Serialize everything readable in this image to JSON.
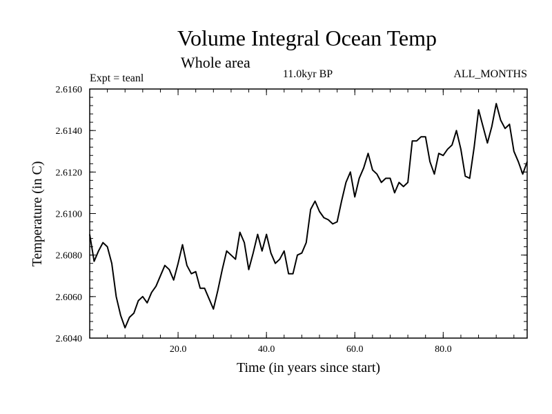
{
  "chart_data": {
    "type": "line",
    "title": "Volume Integral Ocean Temp",
    "subtitle": "Whole area",
    "annotations": {
      "experiment": "Expt = teanl",
      "period": "11.0kyr BP",
      "months": "ALL_MONTHS"
    },
    "xlabel": "Time (in years since start)",
    "ylabel": "Temperature (in C)",
    "xlim": [
      0,
      99
    ],
    "ylim": [
      2.604,
      2.616
    ],
    "xticks": [
      20,
      40,
      60,
      80
    ],
    "xtick_labels": [
      "20.0",
      "40.0",
      "60.0",
      "80.0"
    ],
    "yticks": [
      2.604,
      2.606,
      2.608,
      2.61,
      2.612,
      2.614,
      2.616
    ],
    "ytick_labels": [
      "2.6040",
      "2.6060",
      "2.6080",
      "2.6100",
      "2.6120",
      "2.6140",
      "2.6160"
    ],
    "grid": false,
    "series": [
      {
        "name": "Volume Integral Ocean Temp",
        "x": [
          0,
          1,
          2,
          3,
          4,
          5,
          6,
          7,
          8,
          9,
          10,
          11,
          12,
          13,
          14,
          15,
          16,
          17,
          18,
          19,
          20,
          21,
          22,
          23,
          24,
          25,
          26,
          27,
          28,
          29,
          30,
          31,
          32,
          33,
          34,
          35,
          36,
          37,
          38,
          39,
          40,
          41,
          42,
          43,
          44,
          45,
          46,
          47,
          48,
          49,
          50,
          51,
          52,
          53,
          54,
          55,
          56,
          57,
          58,
          59,
          60,
          61,
          62,
          63,
          64,
          65,
          66,
          67,
          68,
          69,
          70,
          71,
          72,
          73,
          74,
          75,
          76,
          77,
          78,
          79,
          80,
          81,
          82,
          83,
          84,
          85,
          86,
          87,
          88,
          89,
          90,
          91,
          92,
          93,
          94,
          95,
          96,
          97,
          98,
          99
        ],
        "values": [
          2.609,
          2.6077,
          2.6082,
          2.6086,
          2.6084,
          2.6076,
          2.606,
          2.6051,
          2.6045,
          2.605,
          2.6052,
          2.6058,
          2.606,
          2.6057,
          2.6062,
          2.6065,
          2.607,
          2.6075,
          2.6073,
          2.6068,
          2.6076,
          2.6085,
          2.6075,
          2.6071,
          2.6072,
          2.6064,
          2.6064,
          2.6059,
          2.6054,
          2.6063,
          2.6073,
          2.6082,
          2.608,
          2.6078,
          2.6091,
          2.6086,
          2.6073,
          2.6081,
          2.609,
          2.6082,
          2.609,
          2.6081,
          2.6076,
          2.6078,
          2.6082,
          2.6071,
          2.6071,
          2.608,
          2.6081,
          2.6086,
          2.6102,
          2.6106,
          2.6101,
          2.6098,
          2.6097,
          2.6095,
          2.6096,
          2.6106,
          2.6115,
          2.612,
          2.6108,
          2.6117,
          2.6122,
          2.6129,
          2.6121,
          2.6119,
          2.6115,
          2.6117,
          2.6117,
          2.611,
          2.6115,
          2.6113,
          2.6115,
          2.6135,
          2.6135,
          2.6137,
          2.6137,
          2.6125,
          2.6119,
          2.6129,
          2.6128,
          2.6131,
          2.6133,
          2.614,
          2.6131,
          2.6118,
          2.6117,
          2.6132,
          2.615,
          2.6142,
          2.6134,
          2.6142,
          2.6153,
          2.6145,
          2.6141,
          2.6143,
          2.613,
          2.6125,
          2.6119,
          2.6125
        ]
      }
    ]
  }
}
